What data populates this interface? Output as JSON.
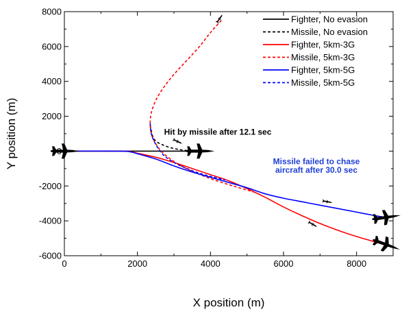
{
  "chart_data": {
    "type": "line",
    "xlabel": "X position (m)",
    "ylabel": "Y position (m)",
    "xlim": [
      0,
      9000
    ],
    "ylim": [
      -6000,
      8000
    ],
    "xticks": [
      0,
      2000,
      4000,
      6000,
      8000
    ],
    "yticks": [
      -6000,
      -4000,
      -2000,
      0,
      2000,
      4000,
      6000,
      8000
    ],
    "grid": false,
    "legend_position": "top-right",
    "series": [
      {
        "name": "Fighter, No evasion",
        "color": "#000000",
        "dash": "solid",
        "x": [
          0,
          3700
        ],
        "y": [
          0,
          0
        ]
      },
      {
        "name": "Missile, No evasion",
        "color": "#000000",
        "dash": "dashed",
        "x": [
          2350,
          2450,
          2700,
          3000,
          3300,
          3650
        ],
        "y": [
          1500,
          700,
          350,
          150,
          50,
          0
        ]
      },
      {
        "name": "Fighter, 5km-3G",
        "color": "#ff0000",
        "dash": "solid",
        "x": [
          0,
          1500,
          1800,
          2000,
          2500,
          3000,
          3500,
          4000,
          4500,
          5000,
          5500,
          6000,
          6500,
          7000,
          7500,
          8000,
          8500,
          8750
        ],
        "y": [
          0,
          0,
          -30,
          -120,
          -350,
          -650,
          -1000,
          -1350,
          -1700,
          -2150,
          -2650,
          -3200,
          -3700,
          -4150,
          -4550,
          -4900,
          -5200,
          -5350
        ]
      },
      {
        "name": "Missile, 5km-3G",
        "color": "#ff0000",
        "dash": "dashed",
        "x": [
          4300,
          4000,
          3700,
          3350,
          3000,
          2700,
          2500,
          2380,
          2350,
          2380,
          2480,
          2650,
          2900,
          3200,
          3600,
          4100,
          4700,
          5200
        ],
        "y": [
          7500,
          6800,
          6000,
          5200,
          4400,
          3600,
          2900,
          2200,
          1600,
          1000,
          500,
          0,
          -450,
          -850,
          -1250,
          -1650,
          -2050,
          -2350
        ]
      },
      {
        "name": "Fighter, 5km-5G",
        "color": "#0000ff",
        "dash": "solid",
        "x": [
          0,
          1500,
          1800,
          2000,
          2500,
          3000,
          3500,
          4000,
          4500,
          5000,
          5500,
          6000,
          6500,
          7000,
          7500,
          8000,
          8500,
          8750
        ],
        "y": [
          0,
          0,
          -40,
          -150,
          -450,
          -850,
          -1200,
          -1500,
          -1800,
          -2100,
          -2450,
          -2700,
          -2900,
          -3100,
          -3300,
          -3500,
          -3700,
          -3780
        ]
      },
      {
        "name": "Missile, 5km-5G",
        "color": "#0000ff",
        "dash": "dashed",
        "x": [
          2350,
          2380,
          2500,
          2700,
          3000,
          3300,
          3600,
          4000,
          4400
        ],
        "y": [
          1600,
          1000,
          400,
          -200,
          -650,
          -950,
          -1200,
          -1450,
          -1650
        ]
      }
    ],
    "annotations": [
      {
        "text": "Hit by missile after 12.1 sec",
        "x": 4200,
        "y": 950,
        "color": "#000000"
      },
      {
        "text": "Missile failed to chase",
        "x": 6900,
        "y": -750,
        "color": "#1f3fd6"
      },
      {
        "text": "aircraft after 30.0 sec",
        "x": 6900,
        "y": -1250,
        "color": "#1f3fd6"
      }
    ],
    "aircraft_markers": [
      {
        "kind": "fighter",
        "x": 0,
        "y": 0,
        "angle": 0,
        "size": 20
      },
      {
        "kind": "fighter",
        "x": 3700,
        "y": 0,
        "angle": 0,
        "size": 20
      },
      {
        "kind": "fighter",
        "x": 8800,
        "y": -3800,
        "angle": -8,
        "size": 20
      },
      {
        "kind": "fighter",
        "x": 8800,
        "y": -5350,
        "angle": 20,
        "size": 20
      },
      {
        "kind": "missile",
        "x": 4250,
        "y": 7600,
        "angle": -55,
        "size": 12
      },
      {
        "kind": "missile",
        "x": 3100,
        "y": 550,
        "angle": 25,
        "size": 12
      },
      {
        "kind": "missile",
        "x": 7200,
        "y": -2900,
        "angle": 10,
        "size": 12
      },
      {
        "kind": "missile",
        "x": 6800,
        "y": -4200,
        "angle": 30,
        "size": 12
      }
    ]
  }
}
